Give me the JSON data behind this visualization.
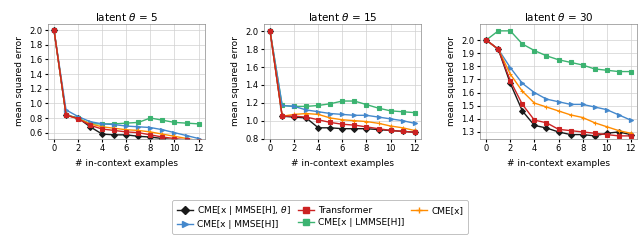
{
  "titles": [
    "latent $\\theta$ = 5",
    "latent $\\theta$ = 15",
    "latent $\\theta$ = 30"
  ],
  "xlabel": "# in-context examples",
  "ylabel": "mean squared error",
  "x_ticks": [
    0,
    2,
    4,
    6,
    8,
    10,
    12
  ],
  "plot1": {
    "ylim": [
      0.52,
      2.08
    ],
    "yticks": [
      0.6,
      0.8,
      1.0,
      1.2,
      1.4,
      1.6,
      1.8,
      2.0
    ],
    "CME_MMSE_theta": [
      2.0,
      0.84,
      0.8,
      0.68,
      0.58,
      0.57,
      0.57,
      0.55,
      0.54,
      0.52,
      0.5,
      0.49,
      0.48
    ],
    "CME_LMMSE_H": [
      2.0,
      0.84,
      0.8,
      0.72,
      0.72,
      0.72,
      0.73,
      0.74,
      0.8,
      0.77,
      0.74,
      0.73,
      0.72
    ],
    "CME_MMSE_H": [
      2.0,
      0.91,
      0.82,
      0.75,
      0.72,
      0.71,
      0.69,
      0.68,
      0.67,
      0.64,
      0.6,
      0.56,
      0.52
    ],
    "CME_x": [
      2.0,
      0.84,
      0.79,
      0.72,
      0.68,
      0.66,
      0.64,
      0.63,
      0.61,
      0.58,
      0.55,
      0.52,
      0.49
    ],
    "Transformer": [
      2.0,
      0.84,
      0.79,
      0.7,
      0.65,
      0.63,
      0.61,
      0.6,
      0.57,
      0.54,
      0.52,
      0.5,
      0.48
    ]
  },
  "plot2": {
    "ylim": [
      0.82,
      2.08
    ],
    "yticks": [
      0.8,
      1.0,
      1.2,
      1.4,
      1.6,
      1.8,
      2.0
    ],
    "CME_MMSE_theta": [
      2.0,
      1.05,
      1.04,
      1.03,
      0.92,
      0.92,
      0.91,
      0.91,
      0.91,
      0.9,
      0.89,
      0.88,
      0.87
    ],
    "CME_LMMSE_H": [
      2.0,
      1.17,
      1.16,
      1.16,
      1.17,
      1.19,
      1.22,
      1.22,
      1.18,
      1.14,
      1.11,
      1.1,
      1.09
    ],
    "CME_MMSE_H": [
      2.0,
      1.17,
      1.16,
      1.12,
      1.1,
      1.08,
      1.07,
      1.06,
      1.06,
      1.04,
      1.02,
      1.0,
      0.97
    ],
    "CME_x": [
      2.0,
      1.05,
      1.07,
      1.08,
      1.07,
      1.03,
      1.01,
      1.0,
      0.99,
      0.97,
      0.94,
      0.92,
      0.89
    ],
    "Transformer": [
      2.0,
      1.05,
      1.05,
      1.04,
      1.01,
      0.98,
      0.96,
      0.95,
      0.93,
      0.91,
      0.89,
      0.88,
      0.87
    ]
  },
  "plot3": {
    "ylim": [
      1.25,
      2.12
    ],
    "yticks": [
      1.3,
      1.4,
      1.5,
      1.6,
      1.7,
      1.8,
      1.9,
      2.0
    ],
    "CME_MMSE_theta": [
      2.0,
      1.93,
      1.67,
      1.46,
      1.35,
      1.33,
      1.3,
      1.28,
      1.28,
      1.27,
      1.29,
      1.3,
      1.28
    ],
    "CME_LMMSE_H": [
      2.0,
      2.07,
      2.07,
      1.97,
      1.92,
      1.88,
      1.85,
      1.83,
      1.81,
      1.78,
      1.77,
      1.76,
      1.76
    ],
    "CME_MMSE_H": [
      2.0,
      1.93,
      1.79,
      1.67,
      1.6,
      1.55,
      1.53,
      1.51,
      1.51,
      1.49,
      1.47,
      1.43,
      1.39
    ],
    "CME_x": [
      2.0,
      1.93,
      1.74,
      1.61,
      1.52,
      1.49,
      1.46,
      1.43,
      1.41,
      1.37,
      1.34,
      1.31,
      1.29
    ],
    "Transformer": [
      2.0,
      1.93,
      1.69,
      1.51,
      1.39,
      1.37,
      1.32,
      1.31,
      1.3,
      1.29,
      1.28,
      1.27,
      1.27
    ]
  },
  "colors": {
    "CME_MMSE_theta": "#1a1a1a",
    "CME_LMMSE_H": "#3cb371",
    "CME_MMSE_H": "#4488cc",
    "CME_x": "#ff8c00",
    "Transformer": "#cc2222"
  },
  "markers": {
    "CME_MMSE_theta": "D",
    "CME_LMMSE_H": "s",
    "CME_MMSE_H": ">",
    "CME_x": "+",
    "Transformer": "s"
  },
  "legend_labels": {
    "CME_MMSE_theta": "CME[x | MMSE[H], $\\theta$]",
    "CME_LMMSE_H": "CME[x | LMMSE[H]]",
    "CME_MMSE_H": "CME[x | MMSE[H]]",
    "CME_x": "CME[x]",
    "Transformer": "Transformer"
  },
  "legend_order_row1": [
    "CME_MMSE_theta",
    "CME_MMSE_H",
    "Transformer"
  ],
  "legend_order_row2": [
    "CME_LMMSE_H",
    "CME_x"
  ]
}
